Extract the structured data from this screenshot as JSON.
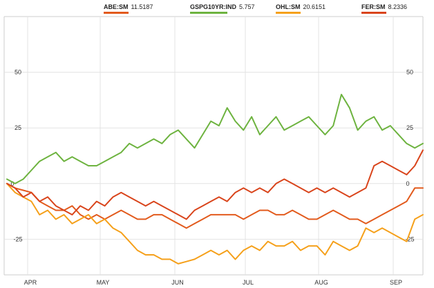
{
  "legend": [
    {
      "ticker": "ABE:SM",
      "value": "11.5187",
      "color": "#e25a1c"
    },
    {
      "ticker": "GSPG10YR:IND",
      "value": "5.757",
      "color": "#6db33f"
    },
    {
      "ticker": "OHL:SM",
      "value": "20.6151",
      "color": "#f5a01a"
    },
    {
      "ticker": "FER:SM",
      "value": "8.2336",
      "color": "#d9441b"
    }
  ],
  "chart_data": {
    "type": "line",
    "x_labels": [
      "APR",
      "MAY",
      "JUN",
      "JUL",
      "AUG",
      "SEP"
    ],
    "y_ticks": [
      50,
      25,
      0,
      -25
    ],
    "y_tick_labels": [
      "50",
      "25",
      "0",
      "-25"
    ],
    "ylim": [
      -41,
      75
    ],
    "xlim": [
      0,
      153
    ],
    "grid": true,
    "legend_position": "top",
    "series": [
      {
        "name": "ABE:SM",
        "color": "#e25a1c",
        "x": [
          0,
          3,
          6,
          9,
          12,
          15,
          18,
          21,
          24,
          27,
          30,
          33,
          36,
          39,
          42,
          45,
          48,
          51,
          54,
          57,
          60,
          63,
          66,
          69,
          72,
          75,
          78,
          81,
          84,
          87,
          90,
          93,
          96,
          99,
          102,
          105,
          108,
          111,
          114,
          117,
          120,
          123,
          126,
          129,
          132,
          135,
          138,
          141,
          144,
          147,
          150,
          153
        ],
        "values": [
          0,
          -2,
          -3,
          -4,
          -8,
          -10,
          -12,
          -12,
          -10,
          -14,
          -16,
          -14,
          -16,
          -14,
          -12,
          -14,
          -16,
          -16,
          -14,
          -14,
          -16,
          -18,
          -20,
          -18,
          -16,
          -14,
          -14,
          -14,
          -14,
          -16,
          -14,
          -12,
          -12,
          -14,
          -14,
          -12,
          -14,
          -16,
          -16,
          -14,
          -12,
          -14,
          -16,
          -16,
          -18,
          -16,
          -14,
          -12,
          -10,
          -8,
          -2,
          -2
        ]
      },
      {
        "name": "GSPG10YR:IND",
        "color": "#6db33f",
        "x": [
          0,
          3,
          6,
          9,
          12,
          15,
          18,
          21,
          24,
          27,
          30,
          33,
          36,
          39,
          42,
          45,
          48,
          51,
          54,
          57,
          60,
          63,
          66,
          69,
          72,
          75,
          78,
          81,
          84,
          87,
          90,
          93,
          96,
          99,
          102,
          105,
          108,
          111,
          114,
          117,
          120,
          123,
          126,
          129,
          132,
          135,
          138,
          141,
          144,
          147,
          150,
          153
        ],
        "values": [
          2,
          0,
          2,
          6,
          10,
          12,
          14,
          10,
          12,
          10,
          8,
          8,
          10,
          12,
          14,
          18,
          16,
          18,
          20,
          18,
          22,
          24,
          20,
          16,
          22,
          28,
          26,
          34,
          28,
          24,
          30,
          22,
          26,
          30,
          24,
          26,
          28,
          30,
          26,
          22,
          26,
          40,
          34,
          24,
          28,
          30,
          24,
          26,
          22,
          18,
          16,
          18
        ]
      },
      {
        "name": "OHL:SM",
        "color": "#f5a01a",
        "x": [
          0,
          3,
          6,
          9,
          12,
          15,
          18,
          21,
          24,
          27,
          30,
          33,
          36,
          39,
          42,
          45,
          48,
          51,
          54,
          57,
          60,
          63,
          66,
          69,
          72,
          75,
          78,
          81,
          84,
          87,
          90,
          93,
          96,
          99,
          102,
          105,
          108,
          111,
          114,
          117,
          120,
          123,
          126,
          129,
          132,
          135,
          138,
          141,
          144,
          147,
          150,
          153
        ],
        "values": [
          0,
          -4,
          -6,
          -8,
          -14,
          -12,
          -16,
          -14,
          -18,
          -16,
          -14,
          -18,
          -16,
          -20,
          -22,
          -26,
          -30,
          -32,
          -32,
          -34,
          -34,
          -36,
          -35,
          -34,
          -32,
          -30,
          -32,
          -30,
          -34,
          -30,
          -28,
          -30,
          -26,
          -28,
          -28,
          -26,
          -30,
          -28,
          -28,
          -32,
          -26,
          -28,
          -30,
          -28,
          -20,
          -22,
          -20,
          -22,
          -24,
          -26,
          -16,
          -14
        ]
      },
      {
        "name": "FER:SM",
        "color": "#d9441b",
        "x": [
          0,
          3,
          6,
          9,
          12,
          15,
          18,
          21,
          24,
          27,
          30,
          33,
          36,
          39,
          42,
          45,
          48,
          51,
          54,
          57,
          60,
          63,
          66,
          69,
          72,
          75,
          78,
          81,
          84,
          87,
          90,
          93,
          96,
          99,
          102,
          105,
          108,
          111,
          114,
          117,
          120,
          123,
          126,
          129,
          132,
          135,
          138,
          141,
          144,
          147,
          150,
          153
        ],
        "values": [
          0,
          -2,
          -6,
          -4,
          -8,
          -6,
          -10,
          -12,
          -14,
          -10,
          -12,
          -8,
          -10,
          -6,
          -4,
          -6,
          -8,
          -10,
          -8,
          -10,
          -12,
          -14,
          -16,
          -12,
          -10,
          -8,
          -6,
          -8,
          -4,
          -2,
          -4,
          -2,
          -4,
          0,
          2,
          0,
          -2,
          -4,
          -2,
          -4,
          -2,
          -4,
          -6,
          -4,
          -2,
          8,
          10,
          8,
          6,
          4,
          8,
          15
        ]
      }
    ]
  }
}
